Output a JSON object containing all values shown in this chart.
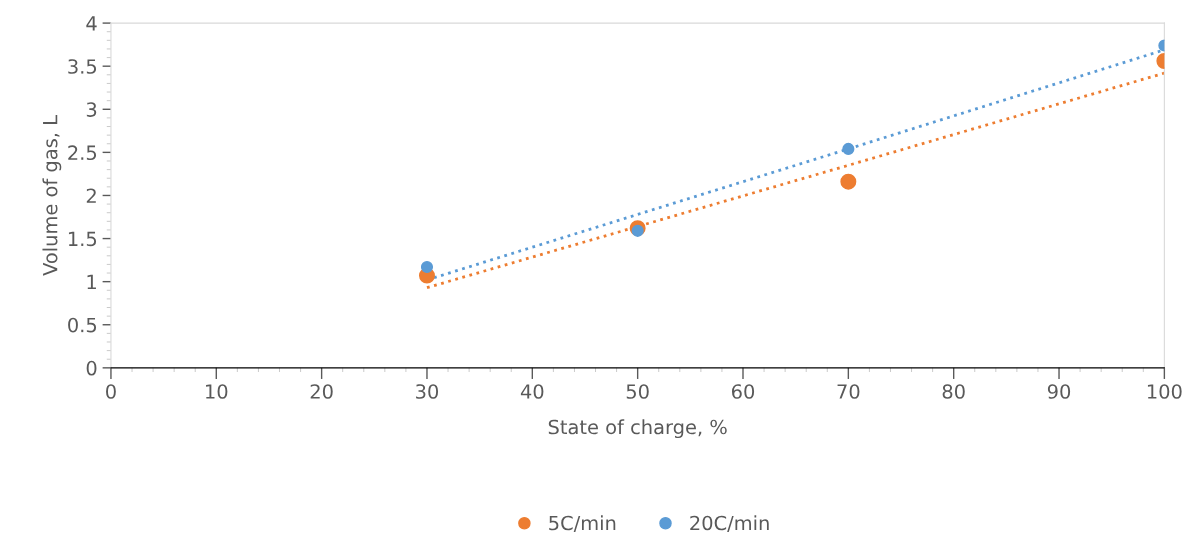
{
  "chart_data": {
    "type": "scatter",
    "xlabel": "State of charge, %",
    "ylabel": "Volume of gas, L",
    "x": [
      30,
      50,
      70,
      100
    ],
    "series": [
      {
        "name": "5C/min",
        "color": "#ed7d31",
        "values": [
          1.07,
          1.62,
          2.16,
          3.56
        ]
      },
      {
        "name": "20C/min",
        "color": "#5b9bd5",
        "values": [
          1.17,
          1.59,
          2.54,
          3.74
        ]
      },
      {
        "type": "line",
        "color": "#ed7d31",
        "values": [
          0.93,
          1.64,
          2.35,
          3.42
        ],
        "line_style": "dotted",
        "marker": "none"
      },
      {
        "type": "line",
        "color": "#5b9bd5",
        "values": [
          1.02,
          1.78,
          2.54,
          3.69
        ],
        "line_style": "dotted",
        "marker": "none"
      }
    ],
    "xlim": [
      0,
      100
    ],
    "xticks": [
      0,
      10,
      20,
      30,
      40,
      50,
      60,
      70,
      80,
      90,
      100
    ],
    "ylim": [
      0,
      4
    ],
    "yticks": [
      0,
      {
        "value": 0.5,
        "label": "0.5"
      },
      1,
      {
        "value": 1.5,
        "label": "1.5"
      },
      2,
      {
        "value": 2.5,
        "label": "2.5"
      },
      3,
      {
        "value": 3.5,
        "label": "3.5"
      },
      4
    ],
    "marker": "circle",
    "grid": false,
    "legend": "bottom"
  }
}
